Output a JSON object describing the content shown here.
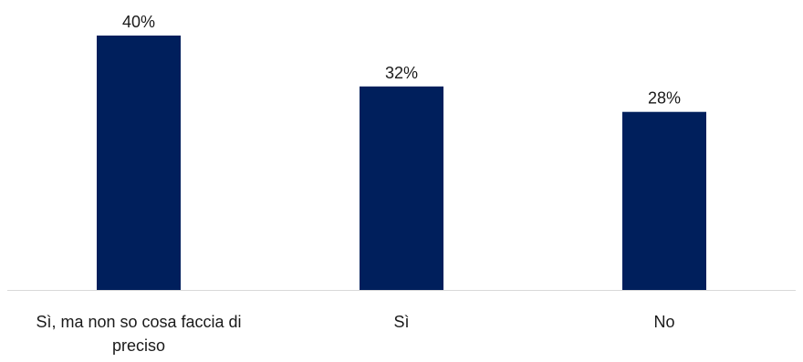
{
  "chart_data": {
    "type": "bar",
    "title": "",
    "xlabel": "",
    "ylabel": "",
    "categories": [
      "Sì, ma non so cosa faccia di preciso",
      "Sì",
      "No"
    ],
    "category_lines": [
      [
        "Sì, ma non so cosa faccia di",
        "preciso"
      ],
      [
        "Sì"
      ],
      [
        "No"
      ]
    ],
    "values": [
      40,
      32,
      28
    ],
    "value_labels": [
      "40%",
      "32%",
      "28%"
    ],
    "unit": "%",
    "ylim": [
      0,
      40
    ],
    "grid": false,
    "legend": "none",
    "colors": {
      "bar": "#001f5c",
      "axis": "#d9d9d9",
      "text": "#1a1a1a"
    }
  }
}
